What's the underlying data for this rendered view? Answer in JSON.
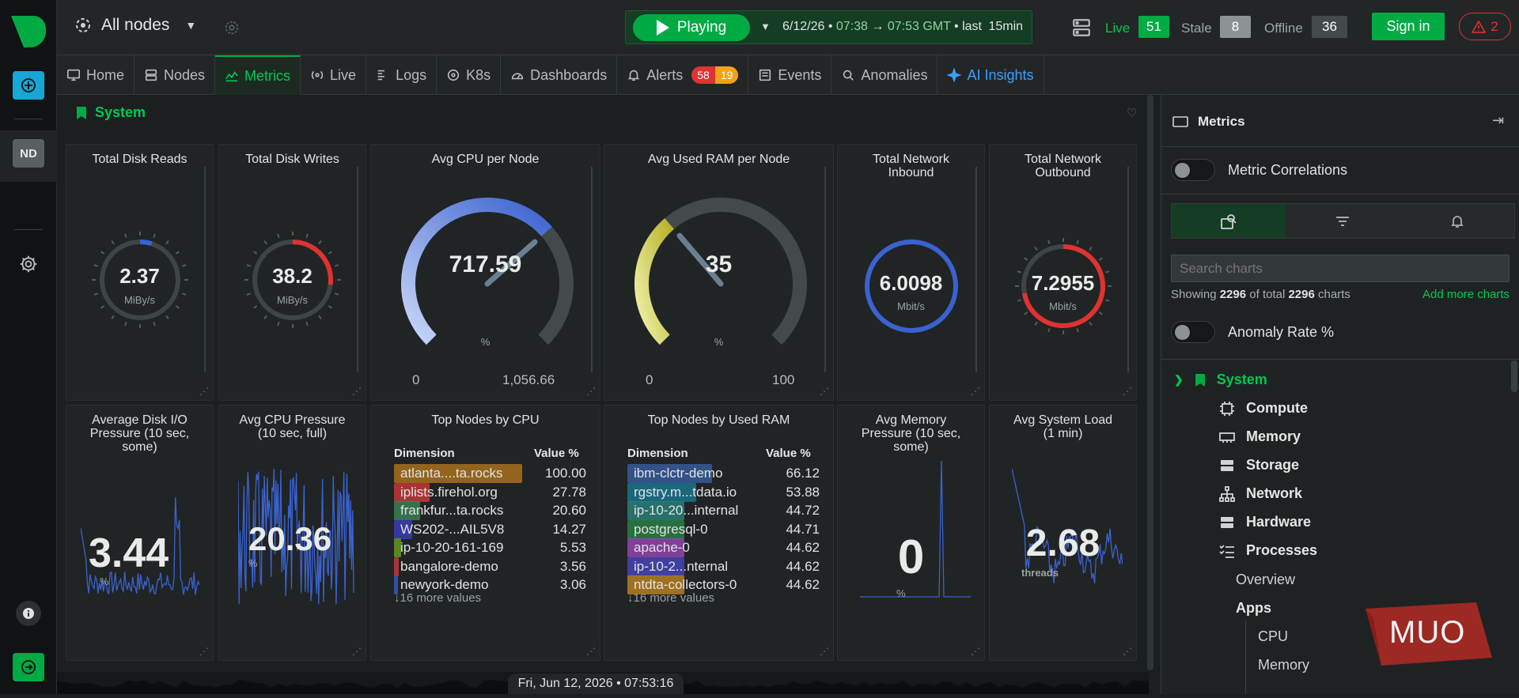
{
  "topbar": {
    "space": "All nodes",
    "play_label": "Playing",
    "date": "6/12/26 •",
    "time_from": "07:38",
    "arrow": "→",
    "time_to": "07:53 GMT",
    "last": "• last",
    "duration": "15min",
    "live_label": "Live",
    "live_count": "51",
    "stale_label": "Stale",
    "stale_count": "8",
    "offline_label": "Offline",
    "offline_count": "36",
    "signin": "Sign in",
    "alert_count": "2"
  },
  "leftbar": {
    "node_badge": "ND"
  },
  "tabs": [
    {
      "label": "Home",
      "icon": "monitor-icon"
    },
    {
      "label": "Nodes",
      "icon": "nodes-icon"
    },
    {
      "label": "Metrics",
      "icon": "metrics-icon"
    },
    {
      "label": "Live",
      "icon": "live-icon"
    },
    {
      "label": "Logs",
      "icon": "logs-icon"
    },
    {
      "label": "K8s",
      "icon": "k8s-icon"
    },
    {
      "label": "Dashboards",
      "icon": "dashboard-icon"
    },
    {
      "label": "Alerts",
      "icon": "bell-icon",
      "critical": "58",
      "warning": "19"
    },
    {
      "label": "Events",
      "icon": "events-icon"
    },
    {
      "label": "Anomalies",
      "icon": "anomalies-icon"
    },
    {
      "label": "AI Insights",
      "icon": "sparkle-icon"
    }
  ],
  "section": {
    "title": "System"
  },
  "gauges": {
    "disk_reads": {
      "title": "Total Disk Reads",
      "value": "2.37",
      "unit": "MiBy/s",
      "fill": 0.05
    },
    "disk_writes": {
      "title": "Total Disk Writes",
      "value": "38.2",
      "unit": "MiBy/s",
      "fill": 0.27
    },
    "cpu": {
      "title": "Avg CPU per Node",
      "value": "717.59",
      "unit": "%",
      "min": "0",
      "max": "1,056.66",
      "fill": 0.68
    },
    "ram": {
      "title": "Avg Used RAM per Node",
      "value": "35",
      "unit": "%",
      "min": "0",
      "max": "100",
      "fill": 0.35
    },
    "net_in": {
      "title1": "Total Network",
      "title2": "Inbound",
      "value": "6.0098",
      "unit": "Mbit/s"
    },
    "net_out": {
      "title1": "Total Network",
      "title2": "Outbound",
      "value": "7.2955",
      "unit": "Mbit/s",
      "fill": 0.72
    }
  },
  "spark": {
    "disk_io": {
      "title1": "Average Disk I/O",
      "title2": "Pressure (10 sec,",
      "title3": "some)",
      "value": "3.44",
      "unit": "%"
    },
    "cpu_pressure": {
      "title1": "Avg CPU Pressure",
      "title2": "(10 sec, full)",
      "value": "20.36",
      "unit": "%"
    },
    "mem_pressure": {
      "title1": "Avg Memory",
      "title2": "Pressure (10 sec,",
      "title3": "some)",
      "value": "0",
      "unit": "%"
    },
    "load": {
      "title1": "Avg System Load",
      "title2": "(1 min)",
      "value": "2.68",
      "unit": "threads"
    }
  },
  "top_cpu": {
    "title": "Top Nodes by CPU",
    "dim_label": "Dimension",
    "val_label": "Value %",
    "rows": [
      {
        "name": "atlanta....ta.rocks",
        "value": "100.00",
        "pct": 100,
        "color": "#b87a1c"
      },
      {
        "name": "iplists.firehol.org",
        "value": "27.78",
        "pct": 27.78,
        "color": "#d83a3a"
      },
      {
        "name": "frankfur...ta.rocks",
        "value": "20.60",
        "pct": 20.6,
        "color": "#3e8a5a"
      },
      {
        "name": "WS202-...AIL5V8",
        "value": "14.27",
        "pct": 14.27,
        "color": "#4040c8"
      },
      {
        "name": "ip-10-20-161-169",
        "value": "5.53",
        "pct": 5.53,
        "color": "#6aa820"
      },
      {
        "name": "bangalore-demo",
        "value": "3.56",
        "pct": 3.56,
        "color": "#d83a3a"
      },
      {
        "name": "newyork-demo",
        "value": "3.06",
        "pct": 3.06,
        "color": "#3a62d0"
      }
    ],
    "more": "↓16 more values"
  },
  "top_ram": {
    "title": "Top Nodes by Used RAM",
    "dim_label": "Dimension",
    "val_label": "Value %",
    "rows": [
      {
        "name": "ibm-clctr-demo",
        "value": "66.12",
        "pct": 66.12,
        "color": "#3a62a8"
      },
      {
        "name": "rgstry.m...tdata.io",
        "value": "53.88",
        "pct": 53.88,
        "color": "#1a7e9a"
      },
      {
        "name": "ip-10-20...internal",
        "value": "44.72",
        "pct": 44.72,
        "color": "#2a8a84"
      },
      {
        "name": "postgresql-0",
        "value": "44.71",
        "pct": 44.71,
        "color": "#2c8a4a"
      },
      {
        "name": "apache-0",
        "value": "44.62",
        "pct": 44.62,
        "color": "#a048c0"
      },
      {
        "name": "ip-10-2...nternal",
        "value": "44.62",
        "pct": 44.62,
        "color": "#4a4ac8"
      },
      {
        "name": "ntdta-collectors-0",
        "value": "44.62",
        "pct": 44.62,
        "color": "#c88a20"
      }
    ],
    "more": "↓16 more values"
  },
  "timeline": {
    "label": "Fri, Jun 12, 2026 • 07:53:16"
  },
  "rpanel": {
    "title": "Metrics",
    "correlations": "Metric Correlations",
    "search_placeholder": "Search charts",
    "showing_pre": "Showing",
    "showing_count": "2296",
    "showing_mid": "of total",
    "showing_total": "2296",
    "showing_post": "charts",
    "add_more": "Add more charts",
    "anomaly": "Anomaly Rate %",
    "tree": {
      "system": "System",
      "items": [
        "Compute",
        "Memory",
        "Storage",
        "Network",
        "Hardware",
        "Processes"
      ],
      "overview": "Overview",
      "apps": "Apps",
      "apps_children": [
        "CPU",
        "Memory"
      ]
    }
  },
  "watermark": "MUO",
  "colors": {
    "green": "#00ab44",
    "blue": "#38a0ff",
    "red": "#e0322f",
    "orange": "#f5a11a"
  }
}
